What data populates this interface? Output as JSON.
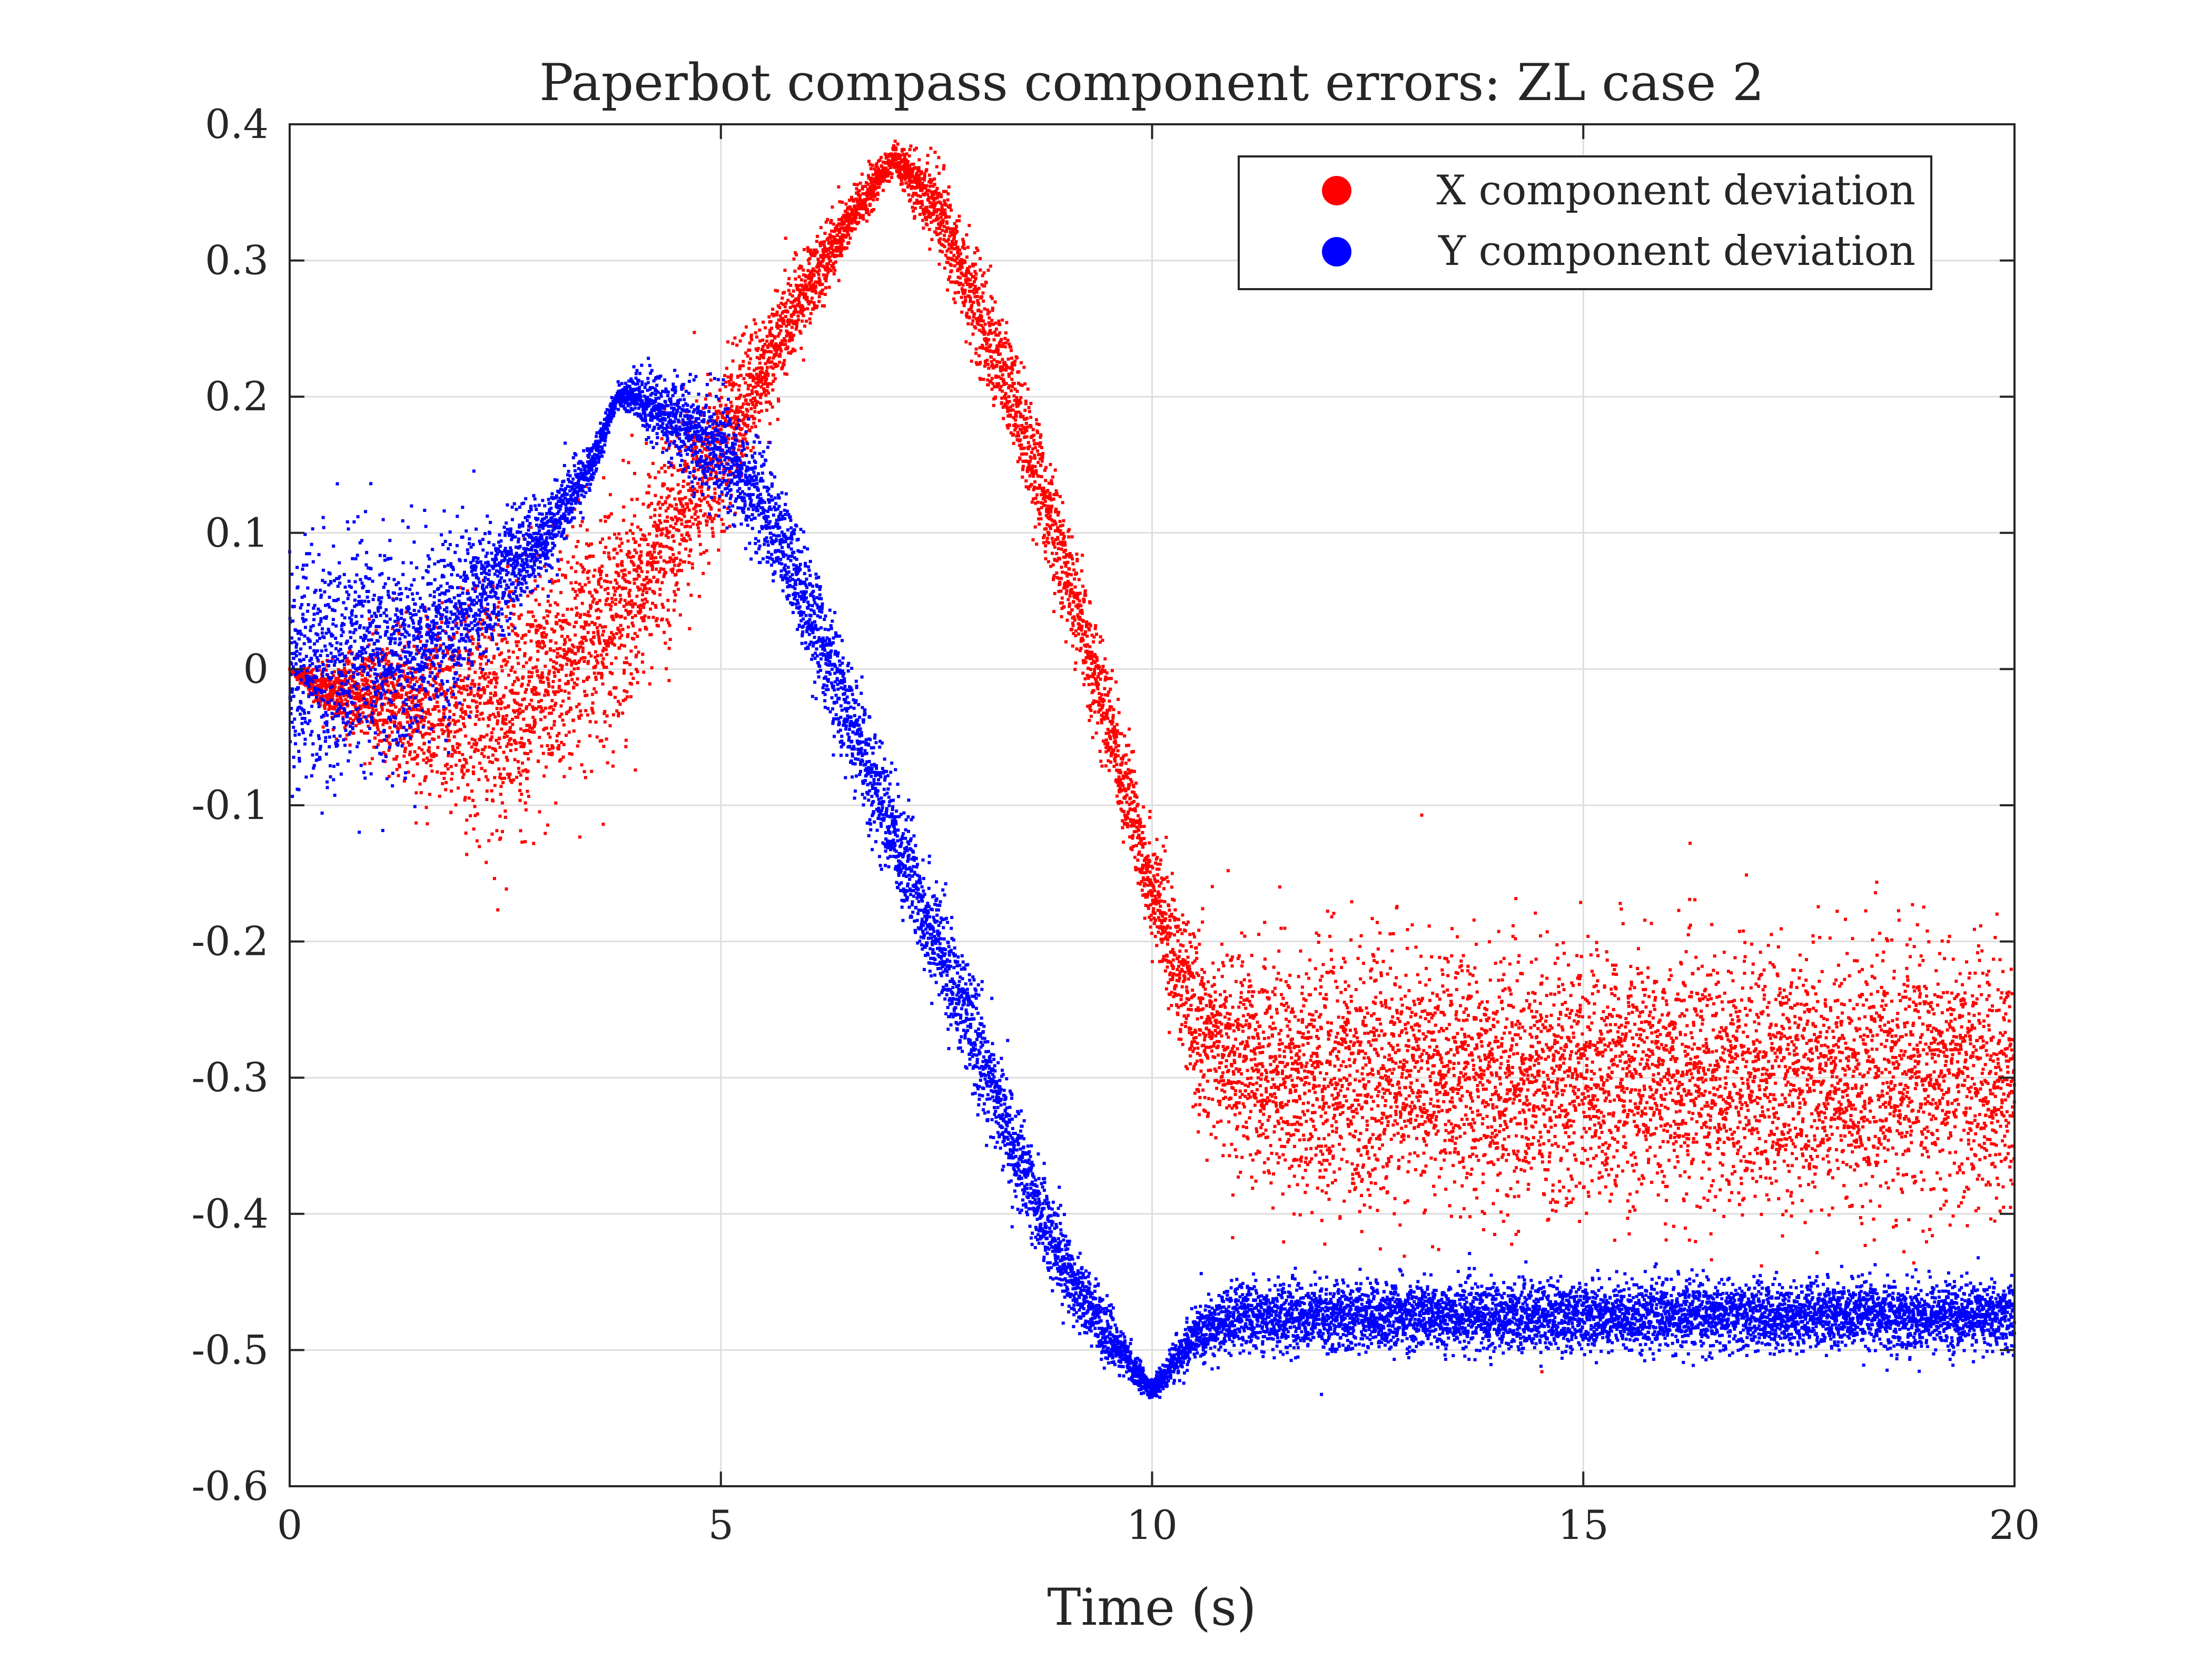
{
  "chart_data": {
    "type": "scatter",
    "title": "Paperbot compass component errors: ZL case 2",
    "xlabel": "Time (s)",
    "ylabel": "",
    "xlim": [
      0,
      20
    ],
    "ylim": [
      -0.6,
      0.4
    ],
    "xticks": [
      0,
      5,
      10,
      15,
      20
    ],
    "xtick_labels": [
      "0",
      "5",
      "10",
      "15",
      "20"
    ],
    "yticks": [
      0.4,
      0.3,
      0.2,
      0.1,
      0,
      -0.1,
      -0.2,
      -0.3,
      -0.4,
      -0.5,
      -0.6
    ],
    "ytick_labels": [
      "0.4",
      "0.3",
      "0.2",
      "0.1",
      "0",
      "-0.1",
      "-0.2",
      "-0.3",
      "-0.4",
      "-0.5",
      "-0.6"
    ],
    "grid": true,
    "legend_position": "top-right",
    "series": [
      {
        "name": "X component deviation",
        "color": "#ff0000",
        "trend": {
          "x": [
            0,
            0.5,
            1.0,
            1.5,
            2.0,
            2.5,
            3.0,
            3.5,
            4.0,
            4.5,
            5.0,
            5.5,
            6.0,
            6.5,
            7.0,
            7.5,
            8.0,
            8.5,
            9.0,
            9.5,
            10.0,
            10.5,
            11.0,
            12.0,
            13.0,
            14.0,
            15.0,
            16.0,
            17.0,
            18.0,
            19.0,
            20.0
          ],
          "y": [
            0.0,
            -0.02,
            -0.02,
            -0.03,
            -0.03,
            -0.03,
            -0.01,
            0.02,
            0.06,
            0.11,
            0.16,
            0.22,
            0.28,
            0.33,
            0.375,
            0.34,
            0.26,
            0.18,
            0.07,
            -0.04,
            -0.16,
            -0.26,
            -0.29,
            -0.3,
            -0.3,
            -0.3,
            -0.3,
            -0.3,
            -0.3,
            -0.3,
            -0.3,
            -0.3
          ]
        },
        "spread": {
          "x": [
            0,
            0.5,
            1.0,
            1.5,
            2.0,
            2.5,
            3.0,
            3.5,
            4.0,
            4.5,
            5.0,
            5.5,
            6.0,
            6.5,
            7.0,
            7.5,
            8.0,
            8.5,
            9.0,
            9.5,
            10.0,
            10.5,
            11.0,
            12.0,
            20.0
          ],
          "y": [
            0.0,
            0.01,
            0.02,
            0.03,
            0.04,
            0.045,
            0.045,
            0.045,
            0.04,
            0.035,
            0.03,
            0.02,
            0.015,
            0.01,
            0.005,
            0.015,
            0.02,
            0.02,
            0.02,
            0.02,
            0.02,
            0.03,
            0.04,
            0.045,
            0.045
          ]
        },
        "points_per_second": 600
      },
      {
        "name": "Y component deviation",
        "color": "#0000ff",
        "trend": {
          "x": [
            0,
            0.5,
            1.0,
            1.5,
            2.0,
            2.5,
            3.0,
            3.5,
            3.8,
            4.0,
            4.5,
            5.0,
            5.5,
            6.0,
            6.5,
            7.0,
            7.5,
            8.0,
            8.5,
            9.0,
            9.5,
            10.0,
            10.5,
            11.0,
            12.0,
            13.0,
            14.0,
            15.0,
            16.0,
            17.0,
            18.0,
            19.0,
            20.0
          ],
          "y": [
            0.0,
            0.0,
            0.01,
            0.02,
            0.04,
            0.07,
            0.1,
            0.15,
            0.2,
            0.2,
            0.18,
            0.16,
            0.12,
            0.05,
            -0.04,
            -0.12,
            -0.2,
            -0.28,
            -0.37,
            -0.44,
            -0.49,
            -0.53,
            -0.49,
            -0.475,
            -0.475,
            -0.475,
            -0.475,
            -0.475,
            -0.475,
            -0.475,
            -0.475,
            -0.475,
            -0.475
          ]
        },
        "spread": {
          "x": [
            0,
            0.5,
            1.0,
            1.5,
            2.0,
            2.5,
            3.0,
            3.5,
            3.8,
            4.0,
            5.0,
            6.0,
            7.0,
            8.0,
            9.0,
            9.5,
            10.0,
            10.5,
            11.0,
            20.0
          ],
          "y": [
            0.04,
            0.045,
            0.04,
            0.035,
            0.03,
            0.02,
            0.015,
            0.008,
            0.003,
            0.01,
            0.02,
            0.02,
            0.02,
            0.02,
            0.015,
            0.01,
            0.003,
            0.01,
            0.012,
            0.012
          ]
        },
        "points_per_second": 600
      }
    ]
  }
}
